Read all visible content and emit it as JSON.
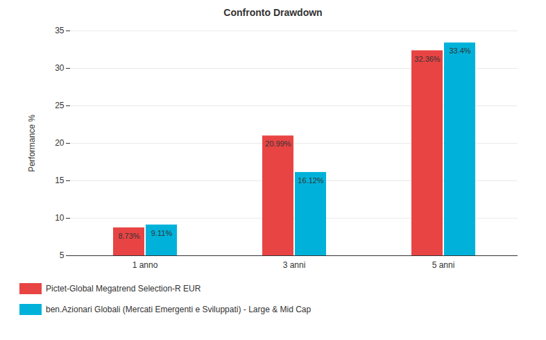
{
  "chart_data": {
    "type": "bar",
    "title": "Confronto Drawdown",
    "ylabel": "Performance %",
    "categories": [
      "1 anno",
      "3 anni",
      "5 anni"
    ],
    "series": [
      {
        "name": "Pictet-Global Megatrend Selection-R EUR",
        "color": "#e84444",
        "values": [
          8.73,
          20.99,
          32.36
        ],
        "value_labels": [
          "8.73%",
          "20.99%",
          "32.36%"
        ]
      },
      {
        "name": "ben.Azionari Globali (Mercati Emergenti e Sviluppati) - Large & Mid Cap",
        "color": "#00b2da",
        "values": [
          9.11,
          16.12,
          33.4
        ],
        "value_labels": [
          "9.11%",
          "16.12%",
          "33.4%"
        ]
      }
    ],
    "ylim": [
      5,
      35
    ],
    "yticks": [
      5,
      10,
      15,
      20,
      25,
      30,
      35
    ],
    "grid": true,
    "data_labels": true,
    "legend": "bottom-left"
  }
}
